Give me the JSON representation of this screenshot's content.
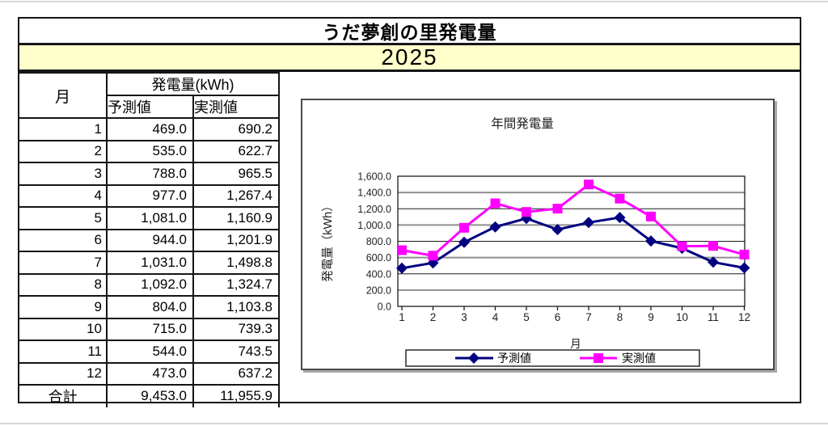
{
  "sheet": {
    "title": "うだ夢創の里発電量",
    "year": "2025",
    "table": {
      "col_month": "月",
      "col_group": "発電量(kWh)",
      "col_predicted": "予測値",
      "col_actual": "実測値",
      "rows": [
        {
          "month": "1",
          "predicted": "469.0",
          "actual": "690.2"
        },
        {
          "month": "2",
          "predicted": "535.0",
          "actual": "622.7"
        },
        {
          "month": "3",
          "predicted": "788.0",
          "actual": "965.5"
        },
        {
          "month": "4",
          "predicted": "977.0",
          "actual": "1,267.4"
        },
        {
          "month": "5",
          "predicted": "1,081.0",
          "actual": "1,160.9"
        },
        {
          "month": "6",
          "predicted": "944.0",
          "actual": "1,201.9"
        },
        {
          "month": "7",
          "predicted": "1,031.0",
          "actual": "1,498.8"
        },
        {
          "month": "8",
          "predicted": "1,092.0",
          "actual": "1,324.7"
        },
        {
          "month": "9",
          "predicted": "804.0",
          "actual": "1,103.8"
        },
        {
          "month": "10",
          "predicted": "715.0",
          "actual": "739.3"
        },
        {
          "month": "11",
          "predicted": "544.0",
          "actual": "743.5"
        },
        {
          "month": "12",
          "predicted": "473.0",
          "actual": "637.2"
        }
      ],
      "total": {
        "label": "合計",
        "predicted": "9,453.0",
        "actual": "11,955.9"
      }
    }
  },
  "chart_data": {
    "type": "line",
    "title": "年間発電量",
    "xlabel": "月",
    "ylabel": "発電量（kWh）",
    "categories": [
      "1",
      "2",
      "3",
      "4",
      "5",
      "6",
      "7",
      "8",
      "9",
      "10",
      "11",
      "12"
    ],
    "series": [
      {
        "name": "予測値",
        "color": "#000080",
        "marker": "diamond",
        "values": [
          469.0,
          535.0,
          788.0,
          977.0,
          1081.0,
          944.0,
          1031.0,
          1092.0,
          804.0,
          715.0,
          544.0,
          473.0
        ]
      },
      {
        "name": "実測値",
        "color": "#FF00FF",
        "marker": "square",
        "values": [
          690.2,
          622.7,
          965.5,
          1267.4,
          1160.9,
          1201.9,
          1498.8,
          1324.7,
          1103.8,
          739.3,
          743.5,
          637.2
        ]
      }
    ],
    "ylim": [
      0,
      1600
    ],
    "ytick_step": 200,
    "ytick_labels": [
      "0.0",
      "200.0",
      "400.0",
      "600.0",
      "800.0",
      "1,000.0",
      "1,200.0",
      "1,400.0",
      "1,600.0"
    ],
    "grid": true,
    "legend_position": "bottom"
  },
  "colors": {
    "year_band_bg": "#FFFFCC",
    "grid_gray": "#8f8f8f",
    "grid_black": "#1a1a1a",
    "axis": "#1a1a1a",
    "chart_text": "#1f1f1f"
  }
}
